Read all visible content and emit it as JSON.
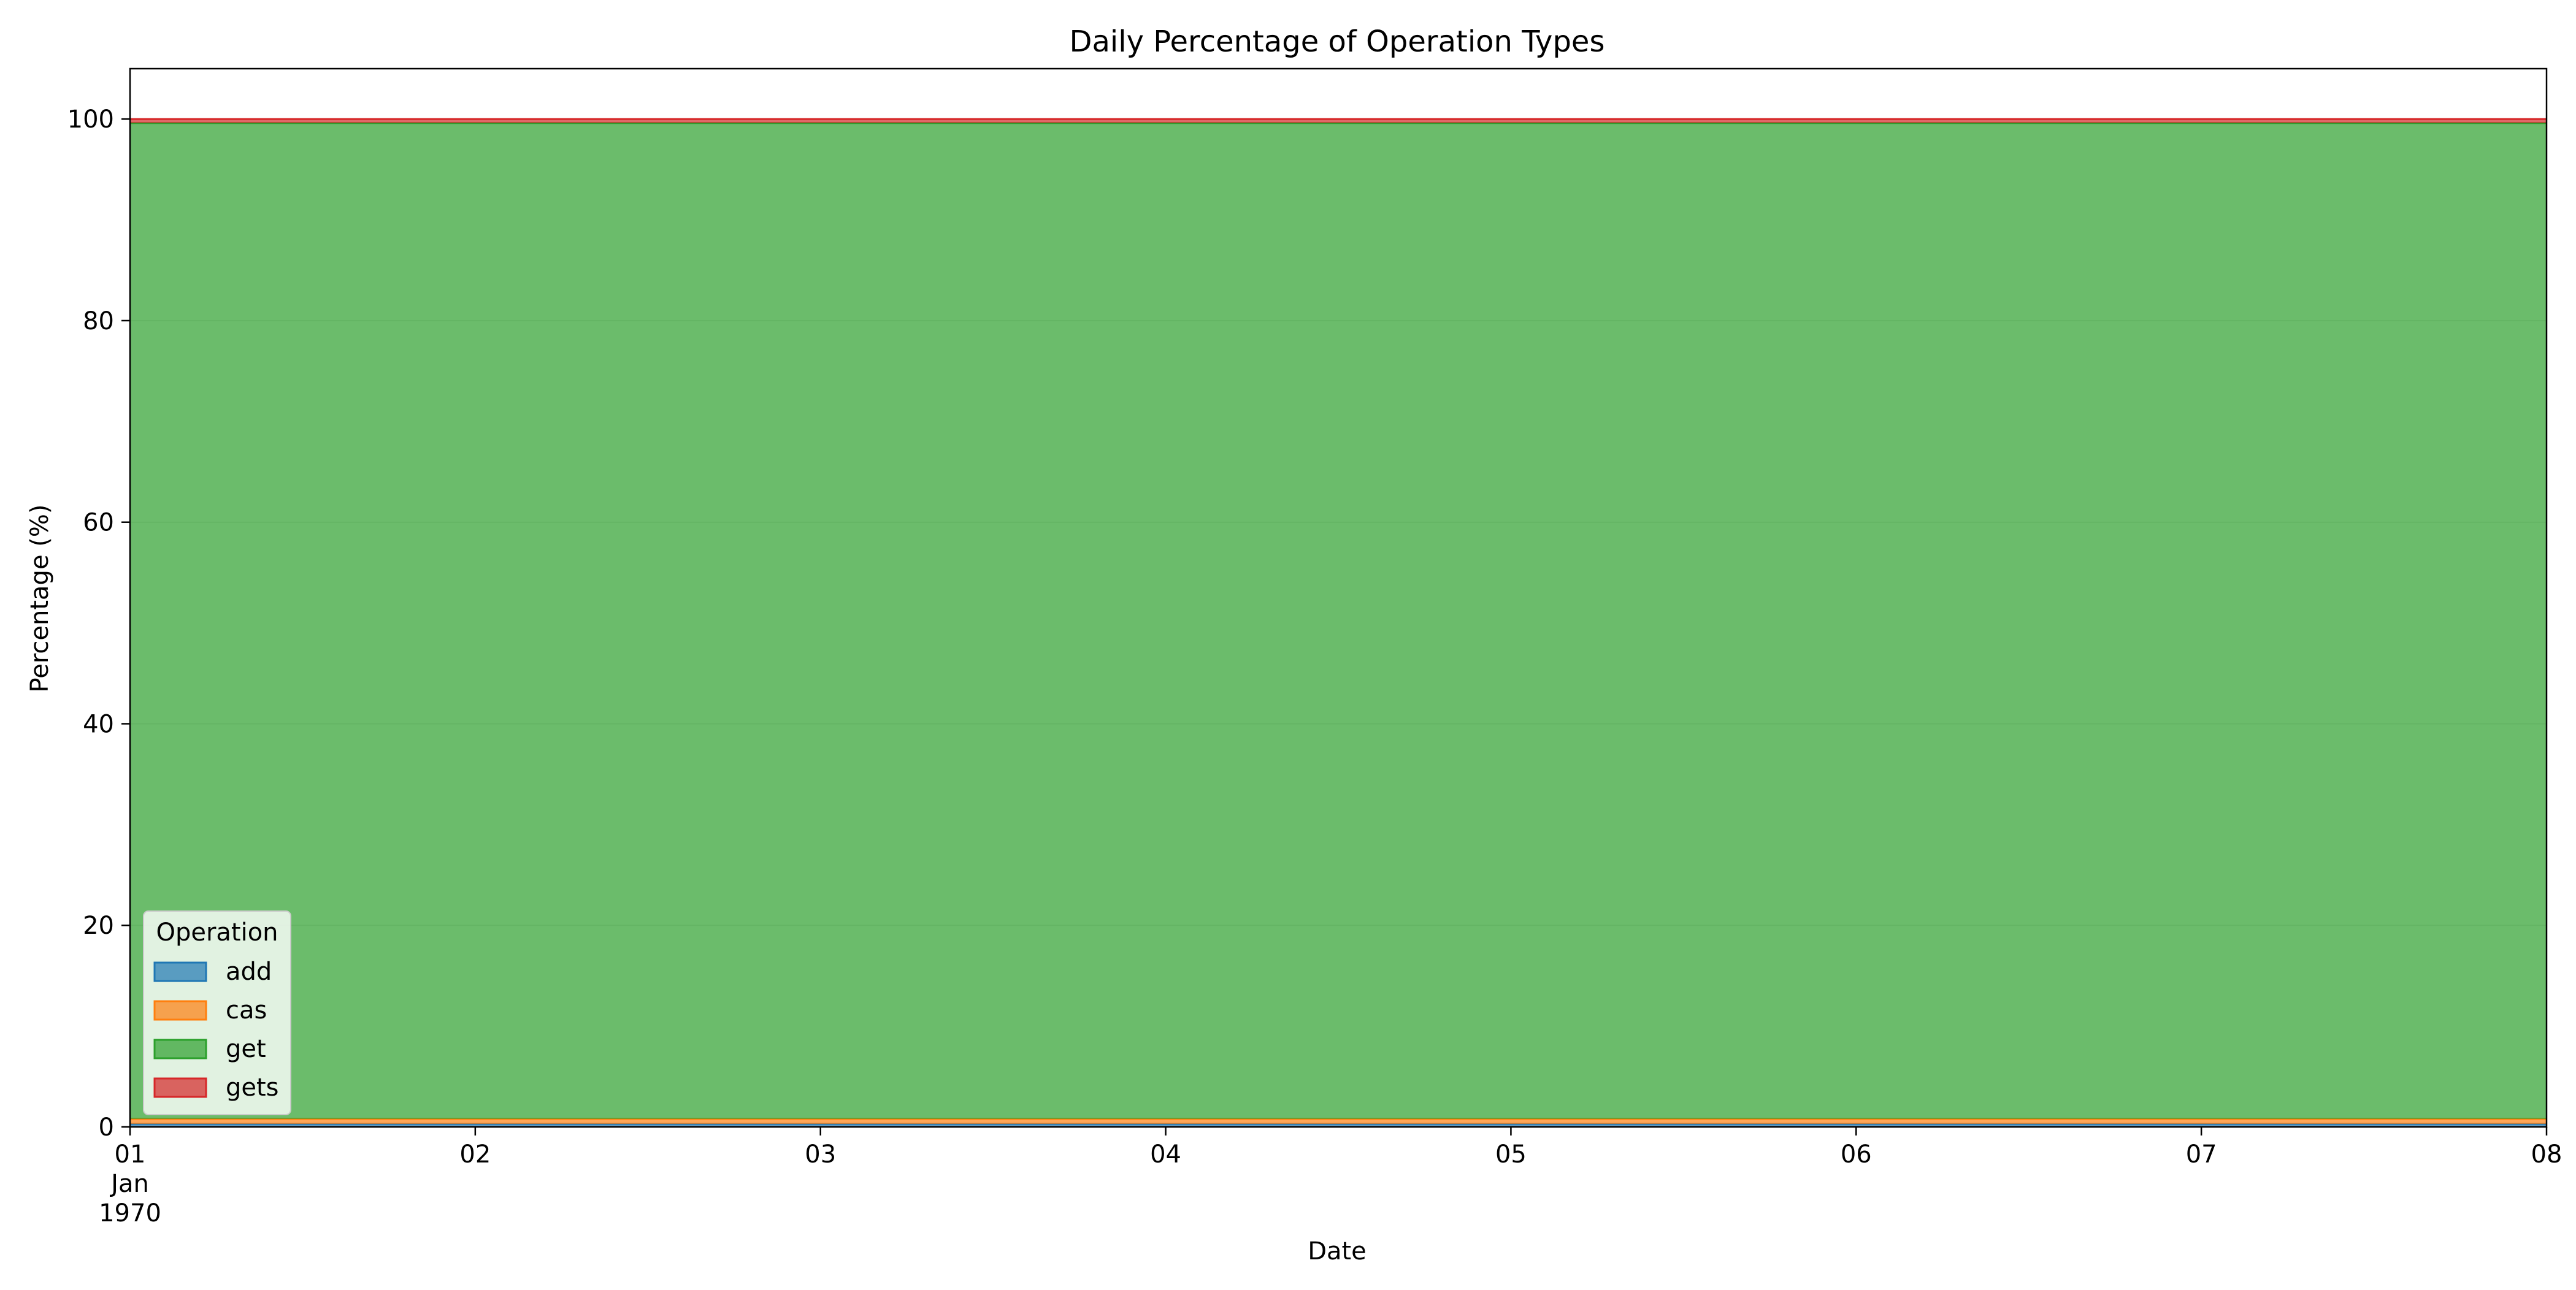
{
  "chart_data": {
    "type": "area",
    "stacked": true,
    "title": "Daily Percentage of Operation Types",
    "xlabel": "Date",
    "ylabel": "Percentage (%)",
    "x": [
      "1970-01-01",
      "1970-01-02",
      "1970-01-03",
      "1970-01-04",
      "1970-01-05",
      "1970-01-06",
      "1970-01-07",
      "1970-01-08"
    ],
    "x_tick_labels": [
      [
        "01",
        "Jan",
        "1970"
      ],
      [
        "02"
      ],
      [
        "03"
      ],
      [
        "04"
      ],
      [
        "05"
      ],
      [
        "06"
      ],
      [
        "07"
      ],
      [
        "08"
      ]
    ],
    "y_ticks": [
      0,
      20,
      40,
      60,
      80,
      100
    ],
    "ylim": [
      0,
      105
    ],
    "grid": true,
    "legend": {
      "title": "Operation",
      "placement": "lower-left"
    },
    "series": [
      {
        "name": "add",
        "color": "#1f77b4",
        "values": [
          0.3,
          0.3,
          0.3,
          0.3,
          0.3,
          0.3,
          0.3,
          0.3
        ]
      },
      {
        "name": "cas",
        "color": "#ff7f0e",
        "values": [
          0.5,
          0.5,
          0.5,
          0.5,
          0.5,
          0.5,
          0.5,
          0.5
        ]
      },
      {
        "name": "get",
        "color": "#2ca02c",
        "values": [
          98.8,
          98.8,
          98.8,
          98.8,
          98.8,
          98.8,
          98.8,
          98.8
        ]
      },
      {
        "name": "gets",
        "color": "#d62728",
        "values": [
          0.4,
          0.4,
          0.4,
          0.4,
          0.4,
          0.4,
          0.4,
          0.4
        ]
      }
    ]
  }
}
